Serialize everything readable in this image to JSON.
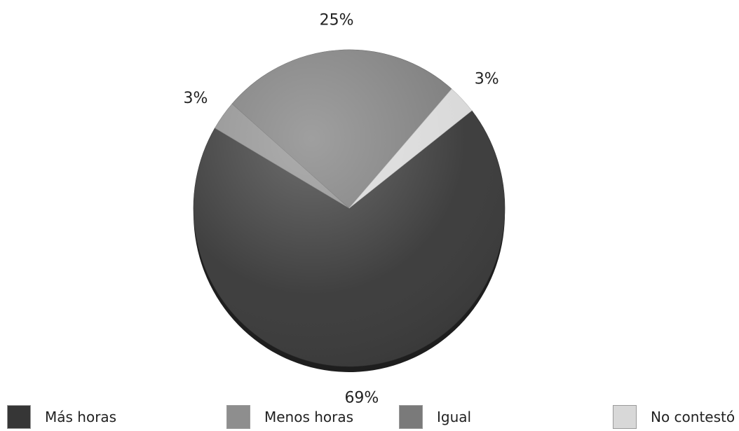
{
  "chart_data": {
    "type": "pie",
    "title": "",
    "slices": [
      {
        "label": "Más horas",
        "value": 69,
        "display": "69%",
        "color": "#363636"
      },
      {
        "label": "Menos horas",
        "value": 3,
        "display": "3%",
        "color": "#8e8e8e"
      },
      {
        "label": "Igual",
        "value": 25,
        "display": "25%",
        "color": "#7a7a7a"
      },
      {
        "label": "No contestó",
        "value": 3,
        "display": "3%",
        "color": "#d8d8d8"
      }
    ],
    "legend": {
      "position": "bottom",
      "items": [
        "Más horas",
        "Menos horas",
        "Igual",
        "No contestó"
      ]
    }
  }
}
